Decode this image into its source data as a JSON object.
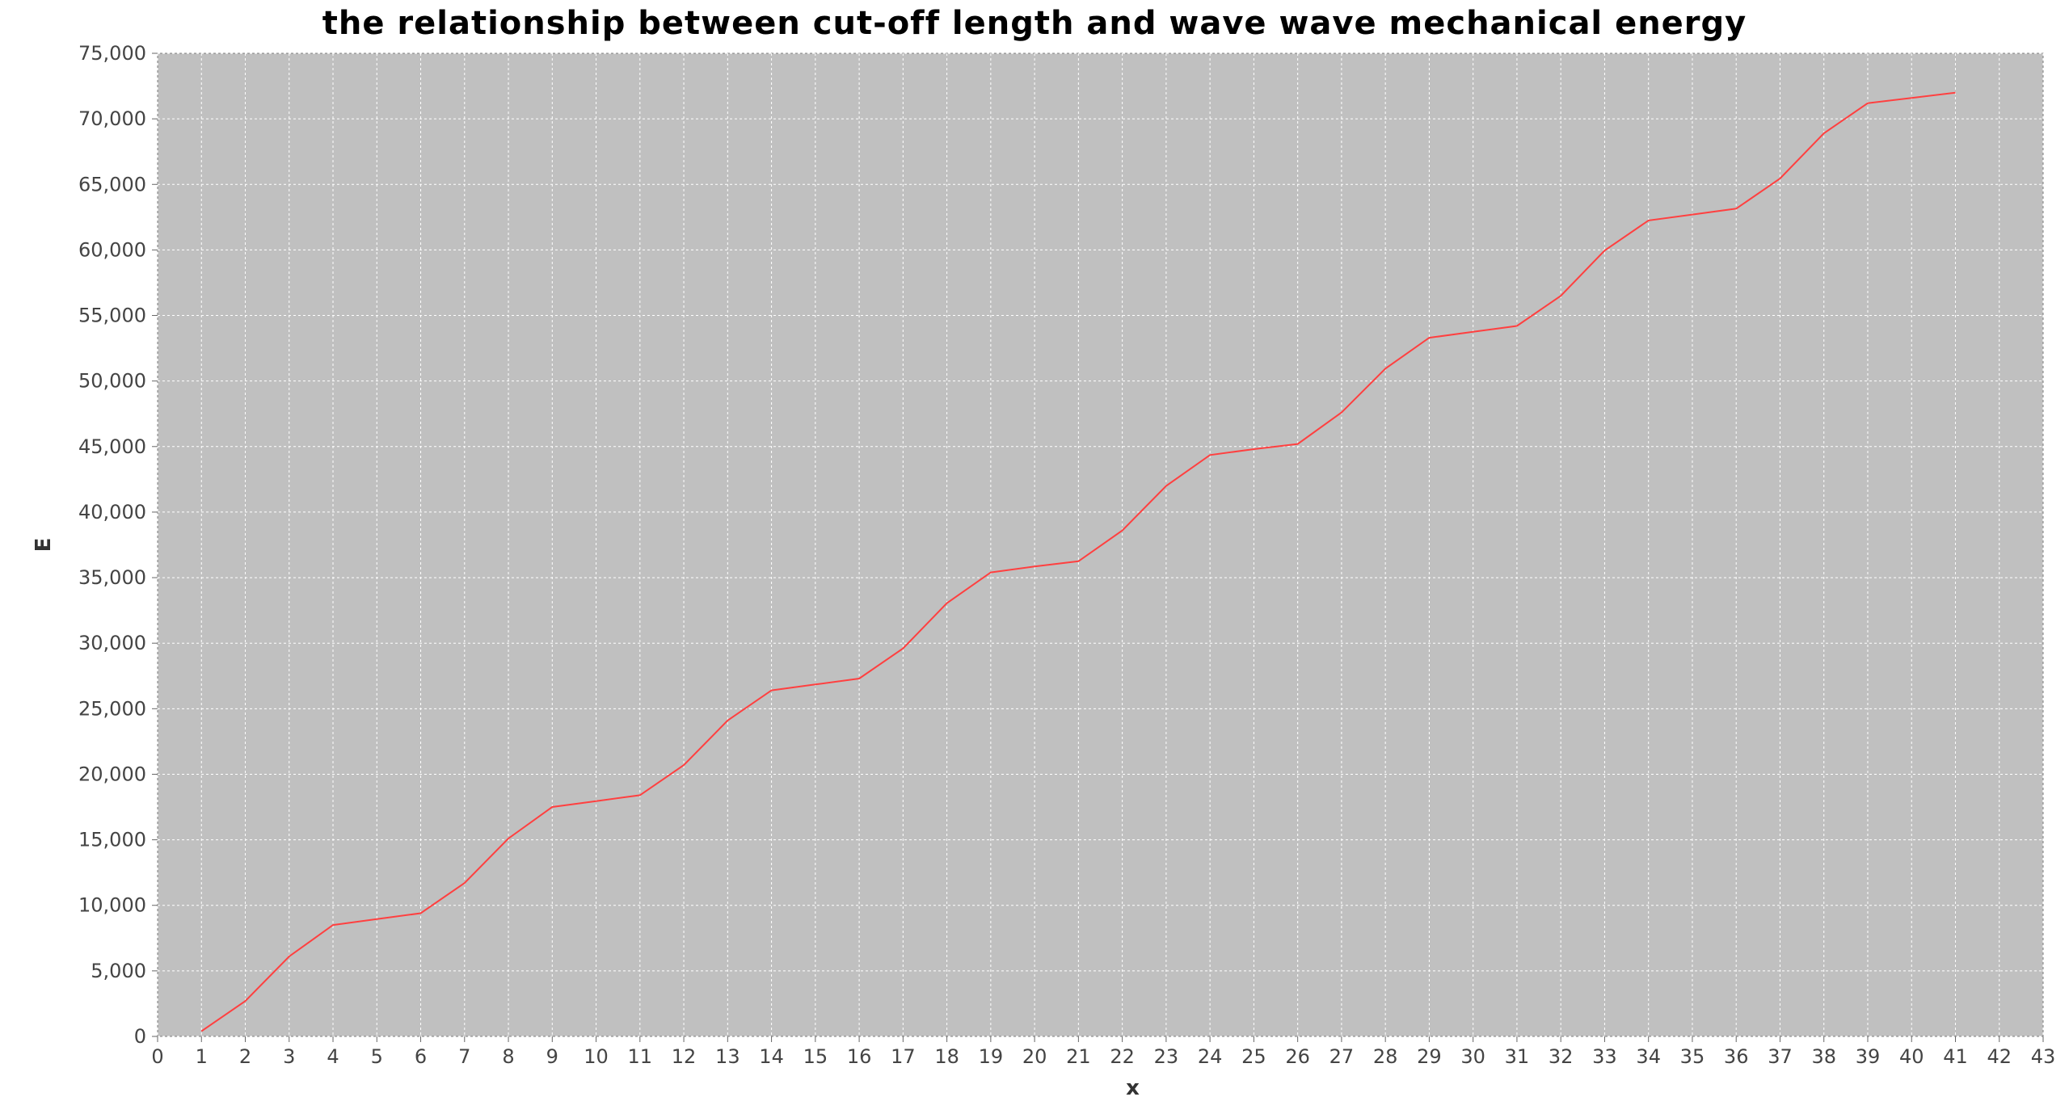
{
  "chart_data": {
    "type": "line",
    "title": "the relationship between cut-off length and wave wave mechanical energy",
    "xlabel": "x",
    "ylabel": "E",
    "xlim": [
      0,
      43
    ],
    "ylim": [
      0,
      75000
    ],
    "x_ticks": [
      0,
      1,
      2,
      3,
      4,
      5,
      6,
      7,
      8,
      9,
      10,
      11,
      12,
      13,
      14,
      15,
      16,
      17,
      18,
      19,
      20,
      21,
      22,
      23,
      24,
      25,
      26,
      27,
      28,
      29,
      30,
      31,
      32,
      33,
      34,
      35,
      36,
      37,
      38,
      39,
      40,
      41,
      42,
      43
    ],
    "y_ticks": [
      0,
      5000,
      10000,
      15000,
      20000,
      25000,
      30000,
      35000,
      40000,
      45000,
      50000,
      55000,
      60000,
      65000,
      70000,
      75000
    ],
    "y_tick_labels": [
      "0",
      "5,000",
      "10,000",
      "15,000",
      "20,000",
      "25,000",
      "30,000",
      "35,000",
      "40,000",
      "45,000",
      "50,000",
      "55,000",
      "60,000",
      "65,000",
      "70,000",
      "75,000"
    ],
    "grid": true,
    "legend": "none",
    "colors": {
      "line": "#ff4040",
      "plot_bg": "#c0c0c0",
      "grid": "#ffffff"
    },
    "series": [
      {
        "x": [
          1,
          2,
          3,
          4,
          5,
          6,
          7,
          8,
          9,
          10,
          11,
          12,
          13,
          14,
          15,
          16,
          17,
          18,
          19,
          20,
          21,
          22,
          23,
          24,
          25,
          26,
          27,
          28,
          29,
          30,
          31,
          32,
          33,
          34,
          35,
          36,
          37,
          38,
          39,
          40,
          41
        ],
        "values": [
          400,
          2700,
          6100,
          8500,
          8950,
          9400,
          11700,
          15100,
          17500,
          17950,
          18400,
          20700,
          24100,
          26400,
          26850,
          27300,
          29600,
          33050,
          35400,
          35850,
          36250,
          38600,
          42000,
          44350,
          44800,
          45200,
          47600,
          50950,
          53300,
          53750,
          54200,
          56500,
          59950,
          62250,
          62700,
          63150,
          65450,
          68900,
          71200,
          71600,
          72000
        ]
      }
    ]
  }
}
